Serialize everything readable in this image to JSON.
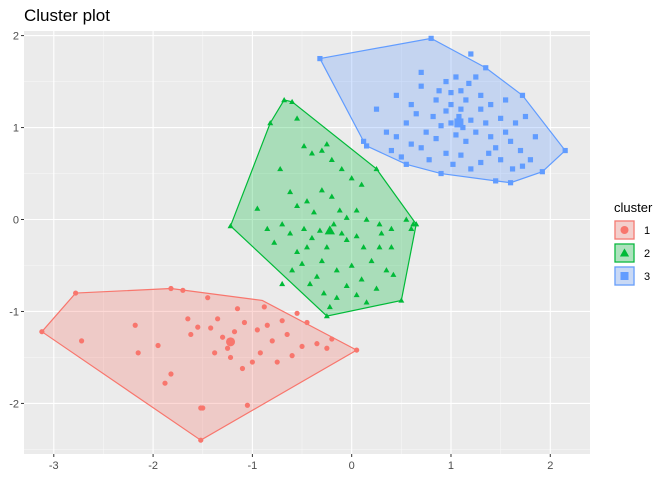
{
  "chart_data": {
    "type": "scatter",
    "title": "Cluster plot",
    "xlabel": "",
    "ylabel": "",
    "xlim": [
      -3.3,
      2.4
    ],
    "ylim": [
      -2.55,
      2.05
    ],
    "x_ticks": [
      -3,
      -2,
      -1,
      0,
      1,
      2
    ],
    "y_ticks": [
      -2,
      -1,
      0,
      1,
      2
    ],
    "x_tick_labels": [
      "-3",
      "-2",
      "-1",
      "0",
      "1",
      "2"
    ],
    "y_tick_labels": [
      "-2",
      "-1",
      "0",
      "1",
      "2"
    ],
    "grid": true,
    "legend": {
      "title": "cluster",
      "position": "right"
    },
    "series": [
      {
        "name": "1",
        "color": "#F8766D",
        "shape": "circle",
        "center": [
          -1.22,
          -1.33
        ],
        "hull": [
          [
            -3.12,
            -1.22
          ],
          [
            -2.78,
            -0.8
          ],
          [
            -1.82,
            -0.75
          ],
          [
            -0.9,
            -0.88
          ],
          [
            0.05,
            -1.42
          ],
          [
            -1.52,
            -2.4
          ]
        ],
        "points": [
          [
            -3.12,
            -1.22
          ],
          [
            -2.78,
            -0.8
          ],
          [
            -2.72,
            -1.32
          ],
          [
            -2.18,
            -1.15
          ],
          [
            -2.15,
            -1.45
          ],
          [
            -1.95,
            -1.37
          ],
          [
            -1.88,
            -1.78
          ],
          [
            -1.82,
            -1.68
          ],
          [
            -1.82,
            -0.75
          ],
          [
            -1.7,
            -0.77
          ],
          [
            -1.65,
            -1.08
          ],
          [
            -1.62,
            -1.25
          ],
          [
            -1.55,
            -1.17
          ],
          [
            -1.5,
            -2.05
          ],
          [
            -1.52,
            -2.05
          ],
          [
            -1.45,
            -0.85
          ],
          [
            -1.42,
            -1.18
          ],
          [
            -1.38,
            -1.45
          ],
          [
            -1.35,
            -1.08
          ],
          [
            -1.3,
            -1.28
          ],
          [
            -1.25,
            -1.4
          ],
          [
            -1.22,
            -1.5
          ],
          [
            -1.18,
            -1.22
          ],
          [
            -1.15,
            -0.97
          ],
          [
            -1.1,
            -1.62
          ],
          [
            -1.08,
            -1.12
          ],
          [
            -1.05,
            -2.02
          ],
          [
            -1.0,
            -1.55
          ],
          [
            -0.95,
            -1.2
          ],
          [
            -0.92,
            -1.45
          ],
          [
            -0.88,
            -0.95
          ],
          [
            -0.85,
            -1.15
          ],
          [
            -0.8,
            -1.32
          ],
          [
            -0.75,
            -1.55
          ],
          [
            -0.7,
            -1.1
          ],
          [
            -0.65,
            -1.25
          ],
          [
            -0.6,
            -1.48
          ],
          [
            -0.55,
            -1.02
          ],
          [
            -0.5,
            -1.38
          ],
          [
            -0.45,
            -1.12
          ],
          [
            -0.35,
            -1.35
          ],
          [
            -0.25,
            -1.4
          ],
          [
            -0.2,
            -1.3
          ],
          [
            0.05,
            -1.42
          ],
          [
            -1.52,
            -2.4
          ]
        ]
      },
      {
        "name": "2",
        "color": "#00BA38",
        "shape": "triangle",
        "center": [
          -0.22,
          -0.12
        ],
        "hull": [
          [
            -0.68,
            1.3
          ],
          [
            -0.6,
            1.28
          ],
          [
            0.25,
            0.55
          ],
          [
            0.65,
            -0.05
          ],
          [
            0.5,
            -0.88
          ],
          [
            -0.25,
            -1.05
          ],
          [
            -1.22,
            -0.07
          ],
          [
            -0.82,
            1.05
          ]
        ],
        "points": [
          [
            -0.68,
            1.3
          ],
          [
            -0.6,
            1.28
          ],
          [
            -0.82,
            1.05
          ],
          [
            -0.55,
            1.1
          ],
          [
            -0.48,
            0.8
          ],
          [
            -0.4,
            0.72
          ],
          [
            -0.3,
            0.75
          ],
          [
            -0.25,
            0.82
          ],
          [
            -0.2,
            0.65
          ],
          [
            -0.1,
            0.55
          ],
          [
            0.0,
            0.45
          ],
          [
            0.1,
            0.38
          ],
          [
            0.25,
            0.55
          ],
          [
            -0.72,
            0.55
          ],
          [
            -0.62,
            0.3
          ],
          [
            -0.55,
            0.15
          ],
          [
            -0.45,
            0.2
          ],
          [
            -0.38,
            0.08
          ],
          [
            -0.3,
            0.32
          ],
          [
            -0.2,
            0.25
          ],
          [
            -0.12,
            0.1
          ],
          [
            -0.05,
            0.02
          ],
          [
            0.05,
            0.1
          ],
          [
            0.15,
            0.0
          ],
          [
            0.28,
            -0.05
          ],
          [
            0.4,
            -0.1
          ],
          [
            0.55,
            0.0
          ],
          [
            0.6,
            -0.1
          ],
          [
            0.62,
            -0.05
          ],
          [
            0.65,
            -0.05
          ],
          [
            -1.22,
            -0.07
          ],
          [
            -0.95,
            0.12
          ],
          [
            -0.85,
            -0.1
          ],
          [
            -0.78,
            -0.25
          ],
          [
            -0.7,
            -0.05
          ],
          [
            -0.62,
            -0.15
          ],
          [
            -0.55,
            -0.35
          ],
          [
            -0.48,
            -0.1
          ],
          [
            -0.4,
            -0.2
          ],
          [
            -0.32,
            -0.12
          ],
          [
            -0.25,
            -0.3
          ],
          [
            -0.18,
            -0.05
          ],
          [
            -0.1,
            -0.15
          ],
          [
            -0.05,
            -0.22
          ],
          [
            0.05,
            -0.18
          ],
          [
            0.12,
            -0.3
          ],
          [
            0.2,
            -0.45
          ],
          [
            0.28,
            -0.3
          ],
          [
            0.35,
            -0.55
          ],
          [
            0.42,
            -0.6
          ],
          [
            0.5,
            -0.88
          ],
          [
            -0.6,
            -0.55
          ],
          [
            -0.5,
            -0.48
          ],
          [
            -0.42,
            -0.7
          ],
          [
            -0.35,
            -0.62
          ],
          [
            -0.28,
            -0.8
          ],
          [
            -0.22,
            -0.95
          ],
          [
            -0.25,
            -1.05
          ],
          [
            -0.15,
            -0.85
          ],
          [
            -0.05,
            -0.72
          ],
          [
            0.05,
            -0.82
          ],
          [
            0.15,
            -0.9
          ],
          [
            0.25,
            -0.75
          ],
          [
            -0.7,
            -0.7
          ],
          [
            -0.3,
            -0.45
          ],
          [
            0.0,
            -0.5
          ],
          [
            0.1,
            -0.65
          ],
          [
            -0.15,
            -0.55
          ],
          [
            -0.45,
            -0.3
          ],
          [
            0.3,
            -0.15
          ],
          [
            0.4,
            -0.3
          ]
        ]
      },
      {
        "name": "3",
        "color": "#619CFF",
        "shape": "square",
        "center": [
          1.08,
          1.05
        ],
        "hull": [
          [
            -0.32,
            1.75
          ],
          [
            0.8,
            1.97
          ],
          [
            1.35,
            1.65
          ],
          [
            1.72,
            1.35
          ],
          [
            2.15,
            0.75
          ],
          [
            1.92,
            0.52
          ],
          [
            1.6,
            0.4
          ],
          [
            1.45,
            0.42
          ],
          [
            0.9,
            0.5
          ],
          [
            0.55,
            0.6
          ],
          [
            0.15,
            0.8
          ],
          [
            0.12,
            0.85
          ]
        ],
        "points": [
          [
            -0.32,
            1.75
          ],
          [
            0.8,
            1.97
          ],
          [
            1.2,
            1.8
          ],
          [
            1.35,
            1.65
          ],
          [
            1.72,
            1.35
          ],
          [
            2.15,
            0.75
          ],
          [
            1.92,
            0.52
          ],
          [
            1.6,
            0.4
          ],
          [
            1.45,
            0.42
          ],
          [
            0.9,
            0.5
          ],
          [
            0.55,
            0.6
          ],
          [
            0.15,
            0.8
          ],
          [
            0.12,
            0.85
          ],
          [
            0.25,
            1.2
          ],
          [
            0.45,
            1.35
          ],
          [
            0.6,
            1.25
          ],
          [
            0.7,
            1.45
          ],
          [
            0.85,
            1.3
          ],
          [
            0.95,
            1.5
          ],
          [
            1.0,
            1.38
          ],
          [
            1.05,
            1.55
          ],
          [
            1.1,
            1.4
          ],
          [
            1.15,
            1.3
          ],
          [
            1.18,
            1.48
          ],
          [
            1.25,
            1.55
          ],
          [
            1.3,
            1.35
          ],
          [
            0.55,
            1.05
          ],
          [
            0.65,
            1.15
          ],
          [
            0.75,
            0.95
          ],
          [
            0.82,
            1.12
          ],
          [
            0.9,
            1.02
          ],
          [
            0.95,
            1.18
          ],
          [
            1.0,
            1.05
          ],
          [
            1.05,
            0.92
          ],
          [
            1.08,
            1.12
          ],
          [
            1.12,
            1.0
          ],
          [
            1.15,
            0.85
          ],
          [
            1.2,
            1.08
          ],
          [
            1.25,
            0.95
          ],
          [
            1.3,
            1.2
          ],
          [
            1.35,
            1.05
          ],
          [
            1.4,
            0.9
          ],
          [
            1.45,
            0.78
          ],
          [
            1.5,
            1.1
          ],
          [
            1.55,
            0.95
          ],
          [
            1.6,
            0.85
          ],
          [
            1.65,
            1.05
          ],
          [
            1.7,
            0.75
          ],
          [
            1.75,
            1.12
          ],
          [
            1.8,
            0.65
          ],
          [
            1.85,
            0.9
          ],
          [
            0.4,
            0.75
          ],
          [
            0.5,
            0.68
          ],
          [
            0.6,
            0.82
          ],
          [
            0.7,
            0.78
          ],
          [
            0.78,
            0.65
          ],
          [
            0.85,
            0.88
          ],
          [
            0.95,
            0.72
          ],
          [
            1.02,
            0.6
          ],
          [
            1.1,
            0.7
          ],
          [
            1.2,
            0.55
          ],
          [
            1.3,
            0.62
          ],
          [
            1.38,
            0.72
          ],
          [
            1.5,
            0.65
          ],
          [
            1.62,
            0.55
          ],
          [
            1.72,
            0.58
          ],
          [
            0.35,
            0.95
          ],
          [
            0.45,
            0.9
          ],
          [
            1.0,
            1.25
          ],
          [
            1.1,
            1.2
          ],
          [
            0.88,
            1.4
          ],
          [
            1.4,
            1.25
          ],
          [
            1.55,
            1.3
          ],
          [
            0.7,
            1.6
          ]
        ]
      }
    ]
  }
}
